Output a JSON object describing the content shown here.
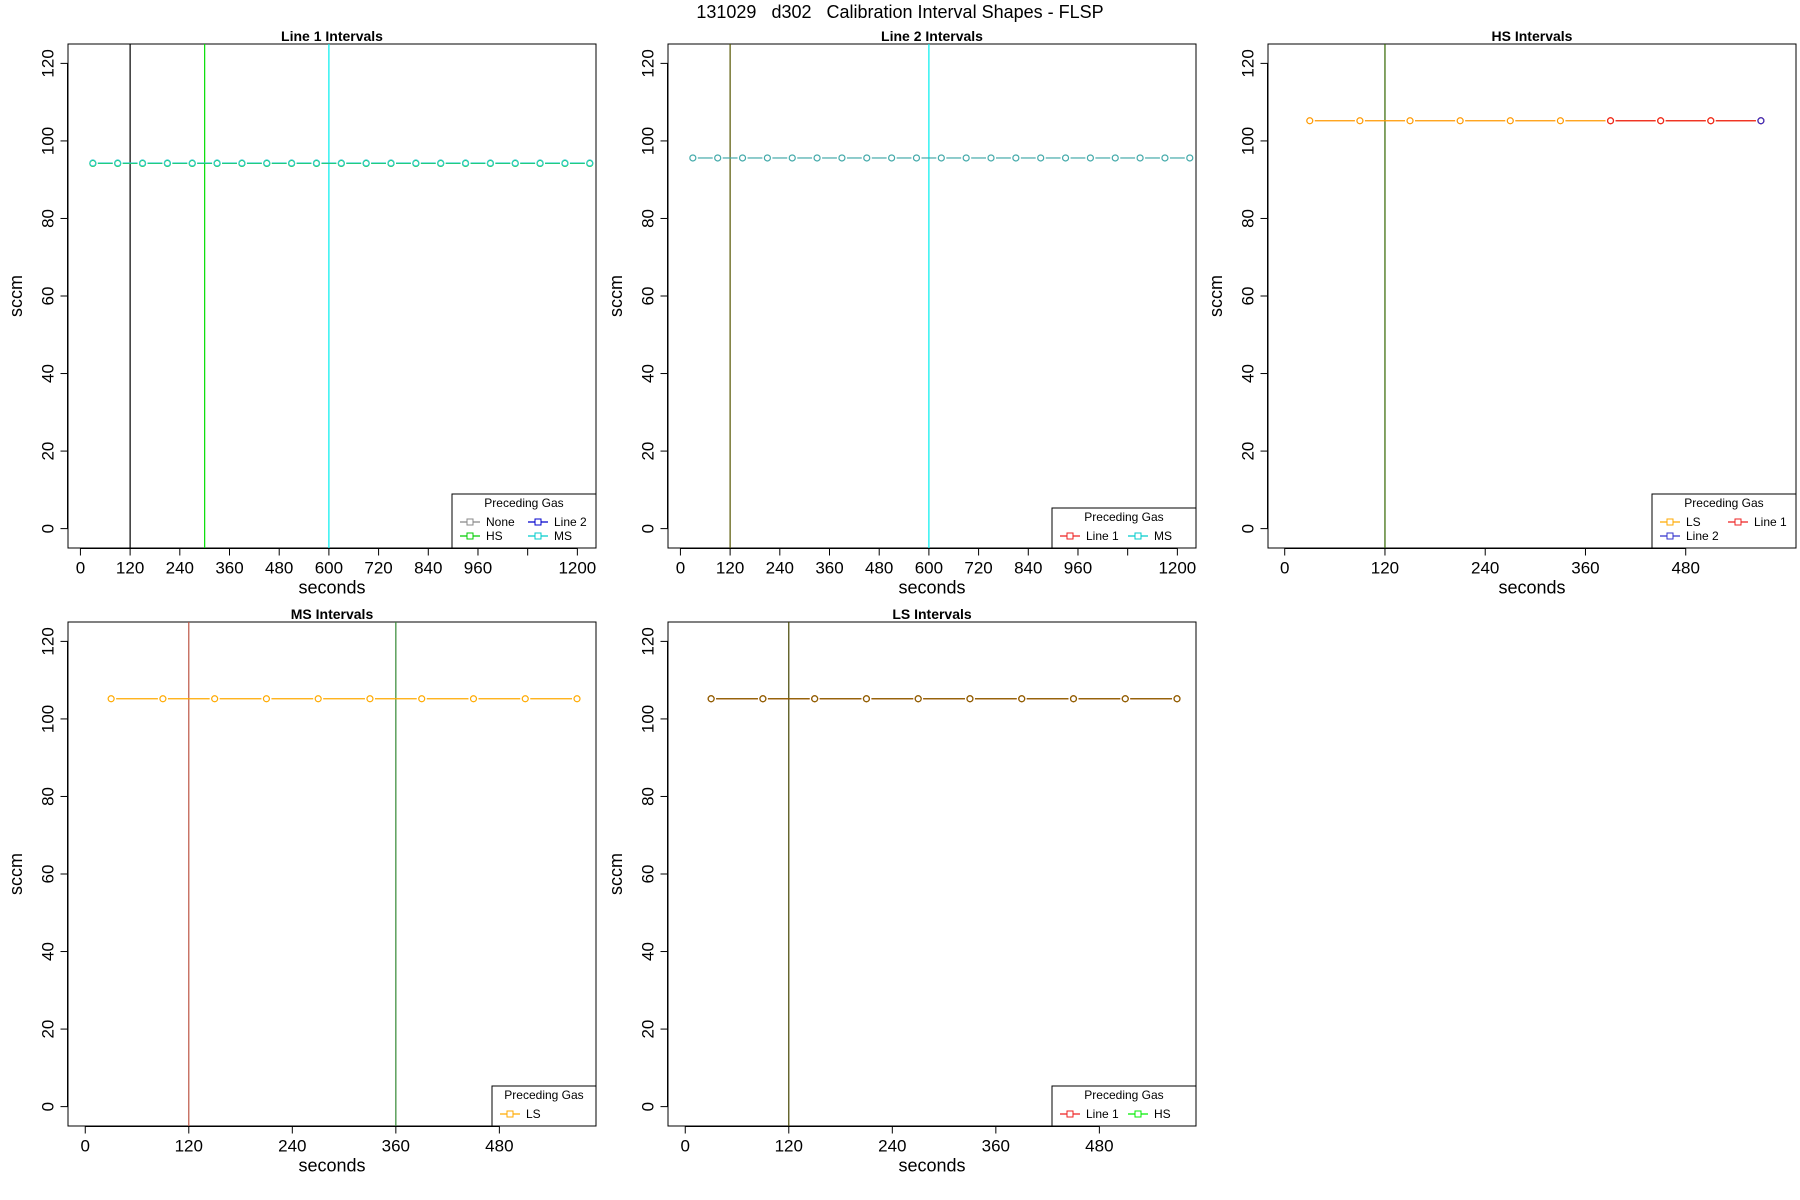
{
  "figure": {
    "title": "131029   d302   Calibration Interval Shapes - FLSP"
  },
  "chart_data": [
    {
      "type": "line",
      "title": "Line 1 Intervals",
      "xlabel": "seconds",
      "ylabel": "sccm",
      "xlim": [
        -30,
        1245
      ],
      "ylim": [
        -5,
        125
      ],
      "xticks": [
        0,
        120,
        240,
        360,
        480,
        600,
        720,
        840,
        960,
        1080,
        1200
      ],
      "xtick_labels": [
        "0",
        "120",
        "240",
        "360",
        "480",
        "600",
        "720",
        "840",
        "960",
        "",
        "1200"
      ],
      "yticks": [
        0,
        20,
        40,
        60,
        80,
        100,
        120
      ],
      "vlines": [
        {
          "x": 120,
          "color": "#000000"
        },
        {
          "x": 300,
          "color": "#00dd00"
        },
        {
          "x": 600,
          "color": "#00eeee"
        }
      ],
      "series": [
        {
          "name": "HS",
          "color": "#00cc00",
          "x_start": 30,
          "x_step": 60,
          "count": 21,
          "y": 94.2
        },
        {
          "name": "MS",
          "color": "#33cccc",
          "x_start": 30,
          "x_step": 60,
          "count": 21,
          "y": 94.3
        }
      ],
      "legend": {
        "title": "Preceding Gas",
        "position": "bottom-right",
        "columns": 2,
        "entries": [
          {
            "label": "None",
            "color": "#888888"
          },
          {
            "label": "Line 2",
            "color": "#0000cc"
          },
          {
            "label": "HS",
            "color": "#00cc00"
          },
          {
            "label": "MS",
            "color": "#00cccc"
          }
        ]
      }
    },
    {
      "type": "line",
      "title": "Line 2 Intervals",
      "xlabel": "seconds",
      "ylabel": "sccm",
      "xlim": [
        -30,
        1245
      ],
      "ylim": [
        -5,
        125
      ],
      "xticks": [
        0,
        120,
        240,
        360,
        480,
        600,
        720,
        840,
        960,
        1080,
        1200
      ],
      "xtick_labels": [
        "0",
        "120",
        "240",
        "360",
        "480",
        "600",
        "720",
        "840",
        "960",
        "",
        "1200"
      ],
      "yticks": [
        0,
        20,
        40,
        60,
        80,
        100,
        120
      ],
      "vlines": [
        {
          "x": 120,
          "color": "#555500"
        },
        {
          "x": 600,
          "color": "#00eeee"
        }
      ],
      "series": [
        {
          "name": "MS",
          "color": "#44aaaa",
          "x_start": 30,
          "x_step": 60,
          "count": 21,
          "y": 95.6
        }
      ],
      "legend": {
        "title": "Preceding Gas",
        "position": "bottom-right",
        "columns": 2,
        "entries": [
          {
            "label": "Line 1",
            "color": "#ee2222"
          },
          {
            "label": "MS",
            "color": "#00cccc"
          }
        ]
      }
    },
    {
      "type": "line",
      "title": "HS Intervals",
      "xlabel": "seconds",
      "ylabel": "sccm",
      "xlim": [
        -20,
        612
      ],
      "ylim": [
        -5,
        125
      ],
      "xticks": [
        0,
        120,
        240,
        360,
        480
      ],
      "xtick_labels": [
        "0",
        "120",
        "240",
        "360",
        "480"
      ],
      "yticks": [
        0,
        20,
        40,
        60,
        80,
        100,
        120
      ],
      "vlines": [
        {
          "x": 120,
          "color": "#336600"
        }
      ],
      "series": [
        {
          "name": "LS",
          "color": "#ff9900",
          "x_start": 30,
          "x_step": 60,
          "count": 10,
          "y": 105.2
        },
        {
          "name": "Line 1",
          "color": "#ee2222",
          "x_start": 390,
          "x_step": 60,
          "count": 4,
          "y": 105.2
        },
        {
          "name": "Line 2",
          "color": "#3333cc",
          "x_start": 570,
          "x_step": 60,
          "count": 1,
          "y": 105.2
        }
      ],
      "legend": {
        "title": "Preceding Gas",
        "position": "bottom-right",
        "columns": 2,
        "entries": [
          {
            "label": "LS",
            "color": "#ffaa00"
          },
          {
            "label": "Line 1",
            "color": "#ee2222"
          },
          {
            "label": "Line 2",
            "color": "#3333cc"
          }
        ]
      }
    },
    {
      "type": "line",
      "title": "MS Intervals",
      "xlabel": "seconds",
      "ylabel": "sccm",
      "xlim": [
        -20,
        592
      ],
      "ylim": [
        -5,
        125
      ],
      "xticks": [
        0,
        120,
        240,
        360,
        480
      ],
      "xtick_labels": [
        "0",
        "120",
        "240",
        "360",
        "480"
      ],
      "yticks": [
        0,
        20,
        40,
        60,
        80,
        100,
        120
      ],
      "vlines": [
        {
          "x": 120,
          "color": "#bb5544"
        },
        {
          "x": 360,
          "color": "#338833"
        }
      ],
      "series": [
        {
          "name": "LS",
          "color": "#ffaa00",
          "x_start": 30,
          "x_step": 60,
          "count": 10,
          "y": 105.2
        }
      ],
      "legend": {
        "title": "Preceding Gas",
        "position": "bottom-right",
        "columns": 1,
        "entries": [
          {
            "label": "LS",
            "color": "#ffaa00"
          }
        ]
      }
    },
    {
      "type": "line",
      "title": "LS Intervals",
      "xlabel": "seconds",
      "ylabel": "sccm",
      "xlim": [
        -20,
        592
      ],
      "ylim": [
        -5,
        125
      ],
      "xticks": [
        0,
        120,
        240,
        360,
        480
      ],
      "xtick_labels": [
        "0",
        "120",
        "240",
        "360",
        "480"
      ],
      "yticks": [
        0,
        20,
        40,
        60,
        80,
        100,
        120
      ],
      "vlines": [
        {
          "x": 120,
          "color": "#444400"
        }
      ],
      "series": [
        {
          "name": "Line 1",
          "color": "#ee2222",
          "x_start": 30,
          "x_step": 60,
          "count": 10,
          "y": 105.2
        },
        {
          "name": "HS",
          "color": "#886600",
          "x_start": 30,
          "x_step": 60,
          "count": 10,
          "y": 105.2
        }
      ],
      "legend": {
        "title": "Preceding Gas",
        "position": "bottom-right",
        "columns": 2,
        "entries": [
          {
            "label": "Line 1",
            "color": "#ee2222"
          },
          {
            "label": "HS",
            "color": "#00ee00"
          }
        ]
      }
    }
  ]
}
